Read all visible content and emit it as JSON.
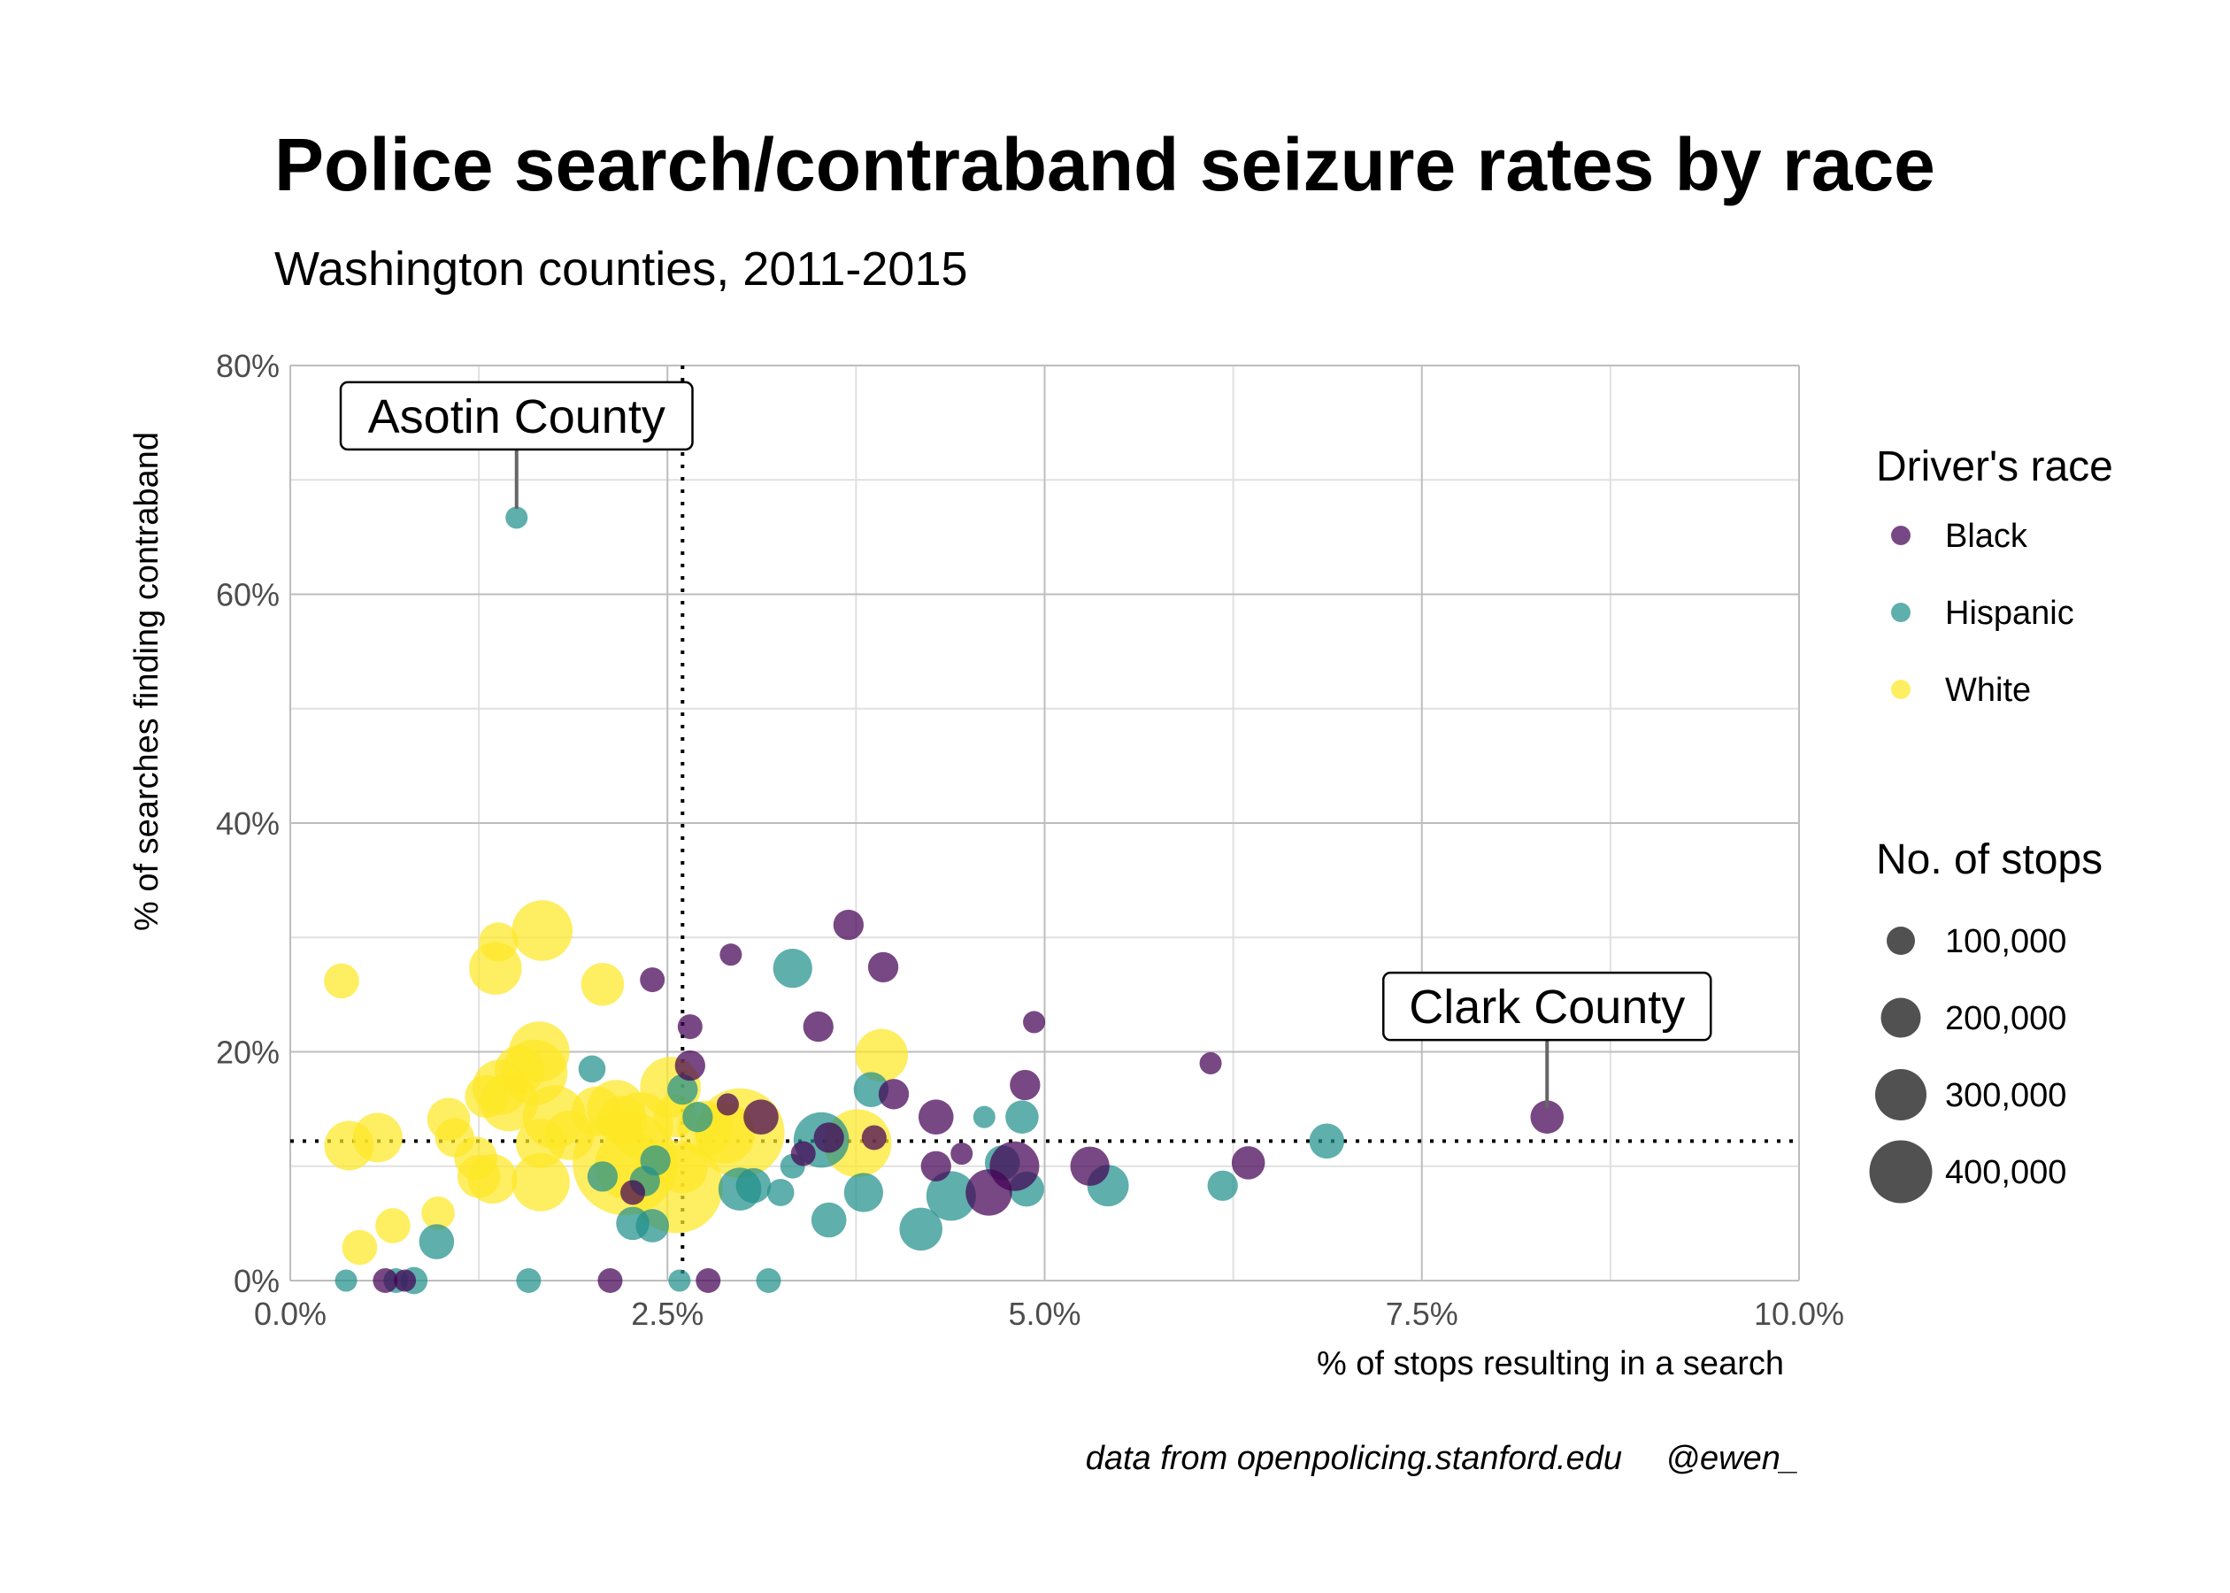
{
  "chart_data": {
    "type": "scatter",
    "title": "Police search/contraband seizure rates by race",
    "subtitle": "Washington counties, 2011-2015",
    "xlabel": "% of stops resulting in a search",
    "ylabel": "% of searches finding contraband",
    "xlim": [
      0,
      10
    ],
    "ylim": [
      0,
      80
    ],
    "x_ticks": [
      "0.0%",
      "2.5%",
      "5.0%",
      "7.5%",
      "10.0%"
    ],
    "x_tick_values": [
      0,
      2.5,
      5,
      7.5,
      10
    ],
    "y_ticks": [
      "0%",
      "20%",
      "40%",
      "60%",
      "80%"
    ],
    "y_tick_values": [
      0,
      20,
      40,
      60,
      80
    ],
    "grid": true,
    "reference_lines": {
      "x": 2.6,
      "y": 12.2,
      "style": "dotted"
    },
    "legend": {
      "position": "right",
      "color_title": "Driver's race",
      "size_title": "No. of stops",
      "size_labels": [
        "100,000",
        "200,000",
        "300,000",
        "400,000"
      ],
      "size_values": [
        100000,
        200000,
        300000,
        400000
      ]
    },
    "annotations": [
      {
        "label": "Asotin County",
        "x": 1.5,
        "y": 66.7
      },
      {
        "label": "Clark County",
        "x": 8.33,
        "y": 14.3
      }
    ],
    "caption_left": "data from openpolicing.stanford.edu",
    "caption_right": "@ewen_",
    "series": [
      {
        "name": "Black",
        "color": "#440154",
        "points": [
          {
            "x": 3.7,
            "y": 31.1,
            "stops": 15000
          },
          {
            "x": 3.93,
            "y": 27.4,
            "stops": 15000
          },
          {
            "x": 2.92,
            "y": 28.5,
            "stops": 8000
          },
          {
            "x": 2.4,
            "y": 26.3,
            "stops": 10000
          },
          {
            "x": 4.93,
            "y": 22.6,
            "stops": 8000
          },
          {
            "x": 3.5,
            "y": 22.2,
            "stops": 15000
          },
          {
            "x": 2.65,
            "y": 22.2,
            "stops": 10000
          },
          {
            "x": 6.1,
            "y": 19.0,
            "stops": 8000
          },
          {
            "x": 2.65,
            "y": 18.8,
            "stops": 15000
          },
          {
            "x": 4.87,
            "y": 17.1,
            "stops": 15000
          },
          {
            "x": 4.0,
            "y": 16.3,
            "stops": 15000
          },
          {
            "x": 2.9,
            "y": 15.4,
            "stops": 8000
          },
          {
            "x": 3.12,
            "y": 14.3,
            "stops": 20000
          },
          {
            "x": 4.28,
            "y": 14.3,
            "stops": 20000
          },
          {
            "x": 8.33,
            "y": 14.3,
            "stops": 18000
          },
          {
            "x": 3.57,
            "y": 12.5,
            "stops": 15000
          },
          {
            "x": 3.87,
            "y": 12.5,
            "stops": 10000
          },
          {
            "x": 3.4,
            "y": 11.1,
            "stops": 10000
          },
          {
            "x": 4.45,
            "y": 11.1,
            "stops": 8000
          },
          {
            "x": 6.35,
            "y": 10.3,
            "stops": 18000
          },
          {
            "x": 5.3,
            "y": 10.0,
            "stops": 25000
          },
          {
            "x": 4.8,
            "y": 10.0,
            "stops": 40000
          },
          {
            "x": 4.28,
            "y": 10.0,
            "stops": 15000
          },
          {
            "x": 4.63,
            "y": 7.7,
            "stops": 35000
          },
          {
            "x": 2.27,
            "y": 7.7,
            "stops": 10000
          },
          {
            "x": 2.77,
            "y": 0.0,
            "stops": 10000
          },
          {
            "x": 2.12,
            "y": 0.0,
            "stops": 10000
          },
          {
            "x": 0.63,
            "y": 0.0,
            "stops": 10000
          },
          {
            "x": 0.76,
            "y": 0.0,
            "stops": 8000
          }
        ]
      },
      {
        "name": "Hispanic",
        "color": "#21908C",
        "points": [
          {
            "x": 1.5,
            "y": 66.7,
            "stops": 8000
          },
          {
            "x": 3.33,
            "y": 27.3,
            "stops": 25000
          },
          {
            "x": 2.0,
            "y": 18.5,
            "stops": 12000
          },
          {
            "x": 3.85,
            "y": 16.7,
            "stops": 20000
          },
          {
            "x": 2.6,
            "y": 16.7,
            "stops": 15000
          },
          {
            "x": 4.6,
            "y": 14.3,
            "stops": 8000
          },
          {
            "x": 4.85,
            "y": 14.3,
            "stops": 18000
          },
          {
            "x": 2.7,
            "y": 14.3,
            "stops": 15000
          },
          {
            "x": 3.52,
            "y": 12.3,
            "stops": 50000
          },
          {
            "x": 6.87,
            "y": 12.2,
            "stops": 20000
          },
          {
            "x": 2.42,
            "y": 10.5,
            "stops": 15000
          },
          {
            "x": 4.72,
            "y": 10.3,
            "stops": 20000
          },
          {
            "x": 3.33,
            "y": 10.0,
            "stops": 10000
          },
          {
            "x": 2.07,
            "y": 9.1,
            "stops": 15000
          },
          {
            "x": 2.35,
            "y": 8.7,
            "stops": 15000
          },
          {
            "x": 3.07,
            "y": 8.3,
            "stops": 20000
          },
          {
            "x": 5.42,
            "y": 8.3,
            "stops": 28000
          },
          {
            "x": 6.18,
            "y": 8.3,
            "stops": 15000
          },
          {
            "x": 2.98,
            "y": 8.0,
            "stops": 30000
          },
          {
            "x": 4.88,
            "y": 8.0,
            "stops": 20000
          },
          {
            "x": 3.8,
            "y": 7.7,
            "stops": 25000
          },
          {
            "x": 3.25,
            "y": 7.7,
            "stops": 12000
          },
          {
            "x": 4.38,
            "y": 7.4,
            "stops": 40000
          },
          {
            "x": 3.57,
            "y": 5.3,
            "stops": 20000
          },
          {
            "x": 4.18,
            "y": 4.5,
            "stops": 30000
          },
          {
            "x": 2.27,
            "y": 5.0,
            "stops": 18000
          },
          {
            "x": 2.4,
            "y": 4.8,
            "stops": 18000
          },
          {
            "x": 0.97,
            "y": 3.4,
            "stops": 20000
          },
          {
            "x": 0.37,
            "y": 0.0,
            "stops": 8000
          },
          {
            "x": 0.7,
            "y": 0.0,
            "stops": 10000
          },
          {
            "x": 0.82,
            "y": 0.0,
            "stops": 12000
          },
          {
            "x": 1.58,
            "y": 0.0,
            "stops": 10000
          },
          {
            "x": 2.58,
            "y": 0.0,
            "stops": 8000
          },
          {
            "x": 3.17,
            "y": 0.0,
            "stops": 10000
          }
        ]
      },
      {
        "name": "White",
        "color": "#FDE725",
        "points": [
          {
            "x": 1.67,
            "y": 30.6,
            "stops": 60000
          },
          {
            "x": 1.38,
            "y": 29.6,
            "stops": 25000
          },
          {
            "x": 1.36,
            "y": 27.3,
            "stops": 45000
          },
          {
            "x": 0.34,
            "y": 26.2,
            "stops": 20000
          },
          {
            "x": 2.07,
            "y": 25.9,
            "stops": 30000
          },
          {
            "x": 1.65,
            "y": 20.0,
            "stops": 60000
          },
          {
            "x": 3.92,
            "y": 19.7,
            "stops": 45000
          },
          {
            "x": 1.62,
            "y": 18.2,
            "stops": 70000
          },
          {
            "x": 1.52,
            "y": 18.4,
            "stops": 40000
          },
          {
            "x": 1.39,
            "y": 16.9,
            "stops": 50000
          },
          {
            "x": 2.52,
            "y": 16.9,
            "stops": 60000
          },
          {
            "x": 1.3,
            "y": 16.1,
            "stops": 30000
          },
          {
            "x": 1.45,
            "y": 15.6,
            "stops": 55000
          },
          {
            "x": 2.03,
            "y": 14.8,
            "stops": 40000
          },
          {
            "x": 2.16,
            "y": 15.0,
            "stops": 55000
          },
          {
            "x": 1.75,
            "y": 14.3,
            "stops": 65000
          },
          {
            "x": 2.2,
            "y": 14.0,
            "stops": 40000
          },
          {
            "x": 1.05,
            "y": 14.1,
            "stops": 30000
          },
          {
            "x": 2.55,
            "y": 14.4,
            "stops": 30000
          },
          {
            "x": 2.75,
            "y": 13.3,
            "stops": 50000
          },
          {
            "x": 0.58,
            "y": 12.5,
            "stops": 40000
          },
          {
            "x": 1.09,
            "y": 12.5,
            "stops": 25000
          },
          {
            "x": 1.85,
            "y": 12.7,
            "stops": 40000
          },
          {
            "x": 1.66,
            "y": 12.0,
            "stops": 40000
          },
          {
            "x": 2.88,
            "y": 12.9,
            "stops": 60000
          },
          {
            "x": 2.98,
            "y": 12.9,
            "stops": 130000
          },
          {
            "x": 3.76,
            "y": 12.0,
            "stops": 75000
          },
          {
            "x": 0.39,
            "y": 11.8,
            "stops": 40000
          },
          {
            "x": 2.32,
            "y": 13.6,
            "stops": 70000
          },
          {
            "x": 2.22,
            "y": 10.3,
            "stops": 180000
          },
          {
            "x": 1.23,
            "y": 10.7,
            "stops": 30000
          },
          {
            "x": 2.25,
            "y": 10.1,
            "stops": 80000
          },
          {
            "x": 2.6,
            "y": 9.8,
            "stops": 40000
          },
          {
            "x": 1.25,
            "y": 9.1,
            "stops": 30000
          },
          {
            "x": 1.34,
            "y": 8.9,
            "stops": 40000
          },
          {
            "x": 1.66,
            "y": 8.6,
            "stops": 55000
          },
          {
            "x": 2.56,
            "y": 8.2,
            "stops": 140000
          },
          {
            "x": 0.98,
            "y": 5.9,
            "stops": 18000
          },
          {
            "x": 0.68,
            "y": 4.8,
            "stops": 20000
          },
          {
            "x": 0.46,
            "y": 2.9,
            "stops": 20000
          }
        ]
      }
    ]
  }
}
